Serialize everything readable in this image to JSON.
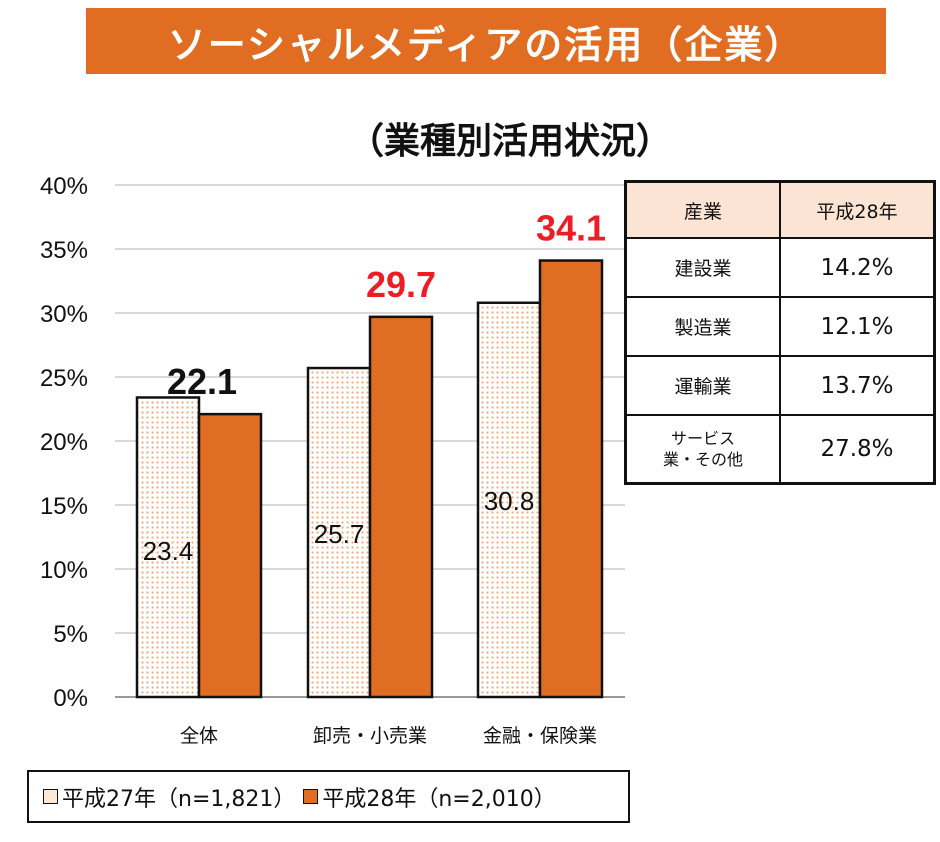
{
  "title": "ソーシャルメディアの活用（企業）",
  "subtitle": "（業種別活用状況）",
  "colors": {
    "accent": "#e06d22",
    "light": "#fbd9c0",
    "highlight": "#ee1c25",
    "header_bg": "#fce4d4"
  },
  "chart_data": {
    "type": "bar",
    "categories": [
      "全体",
      "卸売・小売業",
      "金融・保険業"
    ],
    "series": [
      {
        "name": "平成27年（n=1,821）",
        "values": [
          23.4,
          25.7,
          30.8
        ]
      },
      {
        "name": "平成28年（n=2,010）",
        "values": [
          22.1,
          29.7,
          34.1
        ]
      }
    ],
    "ylim": [
      0,
      40
    ],
    "yticks": [
      "0%",
      "5%",
      "10%",
      "15%",
      "20%",
      "25%",
      "30%",
      "35%",
      "40%"
    ],
    "grid": true,
    "legend": "bottom"
  },
  "table": {
    "headers": [
      "産業",
      "平成28年"
    ],
    "rows": [
      [
        "建設業",
        "14.2%"
      ],
      [
        "製造業",
        "12.1%"
      ],
      [
        "運輸業",
        "13.7%"
      ],
      [
        "サービス\n業・その他",
        "27.8%"
      ]
    ]
  }
}
